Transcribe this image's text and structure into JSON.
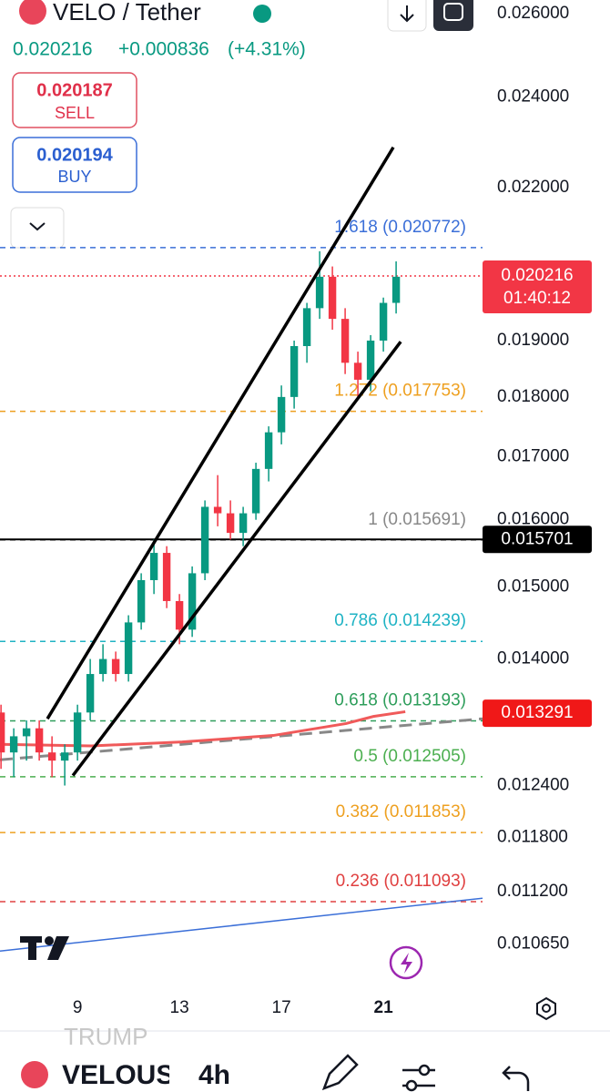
{
  "header": {
    "symbol": "VELO / Tether",
    "last": "0.020216",
    "change": "+0.000836",
    "change_pct": "(+4.31%)",
    "sell_price": "0.020187",
    "sell": "SELL",
    "buy_price": "0.020194",
    "buy": "BUY"
  },
  "chart_data": {
    "type": "candlestick",
    "log_scale": true,
    "grid": false,
    "xlim": [
      5.96,
      24.89
    ],
    "xticks": [
      9,
      13,
      17,
      21
    ],
    "ylim": [
      0.01021,
      0.02634
    ],
    "yticks": [
      {
        "value": 0.026,
        "label": "0.026000"
      },
      {
        "value": 0.024,
        "label": "0.024000"
      },
      {
        "value": 0.022,
        "label": "0.022000"
      },
      {
        "value": 0.019,
        "label": "0.019000"
      },
      {
        "value": 0.018,
        "label": "0.018000"
      },
      {
        "value": 0.017,
        "label": "0.017000"
      },
      {
        "value": 0.016,
        "label": "0.016000"
      },
      {
        "value": 0.015,
        "label": "0.015000"
      },
      {
        "value": 0.014,
        "label": "0.014000"
      },
      {
        "value": 0.0124,
        "label": "0.012400"
      },
      {
        "value": 0.0118,
        "label": "0.011800"
      },
      {
        "value": 0.0112,
        "label": "0.011200"
      },
      {
        "value": 0.01065,
        "label": "0.010650"
      }
    ],
    "up_color": "#089981",
    "down_color": "#f23645",
    "candles": {
      "x": [
        6.0,
        6.5,
        7.0,
        7.5,
        8.0,
        8.5,
        9.0,
        9.5,
        10.0,
        10.5,
        11.0,
        11.5,
        12.0,
        12.5,
        13.0,
        13.5,
        14.0,
        14.5,
        15.0,
        15.5,
        16.0,
        16.5,
        17.0,
        17.5,
        18.0,
        18.5,
        19.0,
        19.5,
        20.0,
        20.5,
        21.0,
        21.5
      ],
      "open": [
        0.0133,
        0.0128,
        0.013,
        0.0131,
        0.0128,
        0.0127,
        0.0128,
        0.0133,
        0.0138,
        0.014,
        0.0138,
        0.0145,
        0.0151,
        0.0155,
        0.0148,
        0.0144,
        0.0152,
        0.0162,
        0.0161,
        0.0158,
        0.0161,
        0.0168,
        0.0174,
        0.018,
        0.0189,
        0.0196,
        0.0202,
        0.0194,
        0.0186,
        0.0183,
        0.019,
        0.0197
      ],
      "high": [
        0.0134,
        0.0131,
        0.0132,
        0.0132,
        0.013,
        0.0129,
        0.0134,
        0.014,
        0.0142,
        0.0141,
        0.0146,
        0.0152,
        0.0157,
        0.0156,
        0.0149,
        0.0153,
        0.0163,
        0.0167,
        0.0163,
        0.0162,
        0.0169,
        0.0175,
        0.0182,
        0.019,
        0.0197,
        0.0207,
        0.0204,
        0.0196,
        0.0188,
        0.0191,
        0.0198,
        0.0205
      ],
      "low": [
        0.0126,
        0.0125,
        0.0127,
        0.0127,
        0.0125,
        0.0124,
        0.0127,
        0.0132,
        0.0137,
        0.0137,
        0.0137,
        0.0144,
        0.0149,
        0.0147,
        0.0142,
        0.0143,
        0.0151,
        0.0159,
        0.0157,
        0.0156,
        0.016,
        0.0166,
        0.0172,
        0.0178,
        0.0186,
        0.0194,
        0.0192,
        0.0184,
        0.018,
        0.0181,
        0.0188,
        0.0195
      ],
      "close": [
        0.0128,
        0.013,
        0.0131,
        0.0128,
        0.0127,
        0.0128,
        0.0133,
        0.0138,
        0.014,
        0.0138,
        0.0145,
        0.0151,
        0.0155,
        0.0148,
        0.0144,
        0.0152,
        0.0162,
        0.0161,
        0.0158,
        0.0161,
        0.0168,
        0.0174,
        0.018,
        0.0189,
        0.0196,
        0.0202,
        0.0194,
        0.0186,
        0.0183,
        0.019,
        0.0197,
        0.0202
      ]
    },
    "fib_levels": [
      {
        "value": 0.020772,
        "label": "1.618 (0.020772)",
        "color": "#3b6fd8"
      },
      {
        "value": 0.017753,
        "label": "1.272 (0.017753)",
        "color": "#eea020"
      },
      {
        "value": 0.015691,
        "label": "1 (0.015691)",
        "color": "#888888"
      },
      {
        "value": 0.014239,
        "label": "0.786 (0.014239)",
        "color": "#1fb3c4"
      },
      {
        "value": 0.013193,
        "label": "0.618 (0.013193)",
        "color": "#2e9e5b"
      },
      {
        "value": 0.012505,
        "label": "0.5 (0.012505)",
        "color": "#4caf50"
      },
      {
        "value": 0.011853,
        "label": "0.382 (0.011853)",
        "color": "#eea020"
      },
      {
        "value": 0.011093,
        "label": "0.236 (0.011093)",
        "color": "#e04040"
      }
    ],
    "channel_upper": {
      "x": [
        7.82,
        21.39
      ],
      "values": [
        0.01322,
        0.02287
      ],
      "color": "#000000"
    },
    "channel_lower": {
      "x": [
        8.82,
        21.68
      ],
      "values": [
        0.01252,
        0.01898
      ],
      "color": "#000000"
    },
    "moving_average": {
      "x": [
        5.96,
        9.54,
        13.11,
        16.68,
        19.54,
        20.61,
        21.86
      ],
      "values": [
        0.0129,
        0.01288,
        0.01293,
        0.01301,
        0.01316,
        0.01325,
        0.01331
      ],
      "color": "#f05a5a"
    },
    "dashed_average": {
      "x": [
        5.96,
        24.89
      ],
      "values": [
        0.01271,
        0.01322
      ],
      "color": "#888888"
    },
    "blue_trendline": {
      "x": [
        5.96,
        24.89
      ],
      "values": [
        0.01058,
        0.01113
      ],
      "color": "#3b6fd8"
    },
    "last_price": {
      "value": 0.020216,
      "label": "0.020216",
      "countdown": "01:40:12",
      "color": "#f23645"
    },
    "horizontal_line": {
      "value": 0.015701,
      "label": "0.015701",
      "color": "#000000"
    },
    "ma_price": {
      "value": 0.013291,
      "label": "0.013291",
      "color": "#f01818"
    }
  },
  "toolbar": {
    "watch_item": "TRUMP",
    "symbol": "VELOUS",
    "interval": "4h"
  }
}
